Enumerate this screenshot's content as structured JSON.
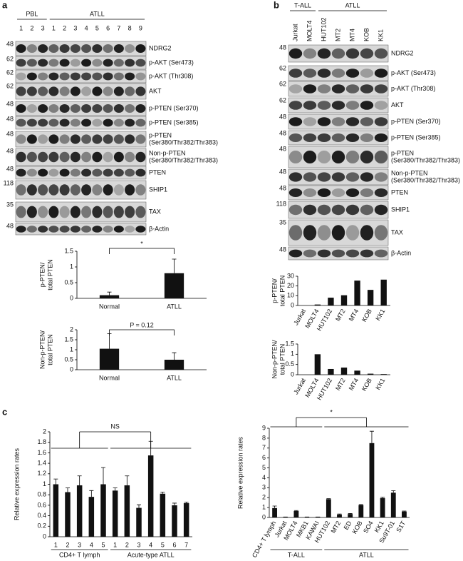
{
  "panels": [
    "a",
    "b",
    "c"
  ],
  "blot_a": {
    "groups": [
      "PBL",
      "ATLL"
    ],
    "lanes": [
      "1",
      "2",
      "3",
      "1",
      "2",
      "3",
      "4",
      "5",
      "6",
      "7",
      "8",
      "9"
    ],
    "rows": [
      {
        "mw": "48",
        "label": [
          "NDRG2"
        ]
      },
      {
        "mw": "62",
        "label": [
          "p-AKT (Ser473)"
        ]
      },
      {
        "mw": "62",
        "label": [
          "p-AKT (Thr308)"
        ]
      },
      {
        "mw": "62",
        "label": [
          "AKT"
        ]
      },
      {
        "mw": "48",
        "label": [
          "p-PTEN (Ser370)"
        ]
      },
      {
        "mw": "48",
        "label": [
          "p-PTEN (Ser385)"
        ]
      },
      {
        "mw": "48",
        "label": [
          "p-PTEN",
          "(Ser380/Thr382/Thr383)"
        ]
      },
      {
        "mw": "48",
        "label": [
          "Non-p-PTEN",
          "(Ser380/Thr382/Thr383)"
        ]
      },
      {
        "mw": "48",
        "label": [
          "PTEN"
        ]
      },
      {
        "mw": "118",
        "label": [
          "SHIP1"
        ]
      },
      {
        "mw": "35",
        "label": [
          "TAX"
        ]
      },
      {
        "mw": "48",
        "label": [
          "β-Actin"
        ]
      }
    ]
  },
  "blot_b": {
    "groups": [
      "T-ALL",
      "ATLL"
    ],
    "lanes": [
      "Jurkat",
      "MOLT4",
      "HUT102",
      "MT2",
      "MT4",
      "KOB",
      "KK1"
    ],
    "rows": [
      {
        "mw": "48",
        "label": [
          "NDRG2"
        ]
      },
      {
        "mw": "62",
        "label": [
          "p-AKT (Ser473)"
        ]
      },
      {
        "mw": "62",
        "label": [
          "p-AKT (Thr308)"
        ]
      },
      {
        "mw": "62",
        "label": [
          "AKT"
        ]
      },
      {
        "mw": "48",
        "label": [
          "p-PTEN (Ser370)"
        ]
      },
      {
        "mw": "48",
        "label": [
          "p-PTEN (Ser385)"
        ]
      },
      {
        "mw": "48",
        "label": [
          "p-PTEN",
          "(Ser380/Thr382/Thr383)"
        ]
      },
      {
        "mw": "48",
        "label": [
          "Non-p-PTEN",
          "(Ser380/Thr382/Thr383)"
        ]
      },
      {
        "mw": "48",
        "label": [
          "PTEN"
        ]
      },
      {
        "mw": "118",
        "label": [
          "SHIP1"
        ]
      },
      {
        "mw": "35",
        "label": [
          "TAX"
        ]
      },
      {
        "mw": "48",
        "label": [
          "β-Actin"
        ]
      }
    ]
  },
  "chart_data": [
    {
      "type": "bar",
      "ylabel": [
        "p-PTEN/",
        "total PTEN"
      ],
      "categories": [
        "Normal",
        "ATLL"
      ],
      "values": [
        0.1,
        0.8
      ],
      "errors": [
        0.1,
        0.45
      ],
      "color": "#111111",
      "ylim": [
        0,
        1.5
      ],
      "yticks": [
        0,
        0.5,
        1,
        1.5
      ],
      "annotation": "*"
    },
    {
      "type": "bar",
      "ylabel": [
        "Non-p-PTEN/",
        "total PTEN"
      ],
      "categories": [
        "Normal",
        "ATLL"
      ],
      "values": [
        1.05,
        0.5
      ],
      "errors": [
        0.75,
        0.35
      ],
      "color": "#111111",
      "ylim": [
        0,
        2
      ],
      "yticks": [
        0,
        0.5,
        1,
        1.5,
        2
      ],
      "annotation": "P = 0.12"
    },
    {
      "type": "bar",
      "ylabel": [
        "p-PTEN/",
        "total PTEN"
      ],
      "categories": [
        "Jurkat",
        "MOLT4",
        "HUT102",
        "MT2",
        "MT4",
        "KOB",
        "KK1"
      ],
      "values": [
        0,
        1,
        8,
        10.5,
        25.5,
        16,
        26.5
      ],
      "color": "#111111",
      "ylim": [
        0,
        30
      ],
      "yticks": [
        0,
        10,
        20,
        30
      ]
    },
    {
      "type": "bar",
      "ylabel": [
        "Non-p-PTEN/",
        "total PTEN"
      ],
      "categories": [
        "Jurkat",
        "MOLT4",
        "HUT102",
        "MT2",
        "MT4",
        "KOB",
        "KK1"
      ],
      "values": [
        0,
        1,
        0.28,
        0.35,
        0.2,
        0.05,
        0.03
      ],
      "color": "#111111",
      "ylim": [
        0,
        1.5
      ],
      "yticks": [
        0,
        0.5,
        1,
        1.5
      ]
    },
    {
      "type": "bar",
      "ylabel": [
        "Relative expression rates"
      ],
      "categories": [
        "1",
        "2",
        "3",
        "4",
        "5",
        "1",
        "2",
        "3",
        "4",
        "5",
        "6",
        "7"
      ],
      "values": [
        1.0,
        0.85,
        0.98,
        0.76,
        1.0,
        0.88,
        0.98,
        0.55,
        1.55,
        0.82,
        0.6,
        0.64
      ],
      "errors": [
        0.1,
        0.08,
        0.18,
        0.12,
        0.32,
        0.05,
        0.18,
        0.06,
        0.27,
        0.03,
        0.04,
        0.02
      ],
      "color": "#111111",
      "ylim": [
        0,
        2
      ],
      "yticks": [
        0,
        0.2,
        0.4,
        0.6,
        0.8,
        1,
        1.2,
        1.4,
        1.6,
        1.8,
        2
      ],
      "groups": [
        "CD4+ T lymph",
        "Acute-type ATLL"
      ],
      "annotation": "NS"
    },
    {
      "type": "bar",
      "ylabel": [
        "Relative expression rates"
      ],
      "categories": [
        "CD4+ T lymph",
        "Jurkat",
        "MOLT4",
        "MKB1",
        "KAWAI",
        "HUT102",
        "MT2",
        "ED",
        "KOB",
        "SO4",
        "KK1",
        "Su9T-01",
        "S1T"
      ],
      "values": [
        0.95,
        0.05,
        0.65,
        0.05,
        0.05,
        1.85,
        0.3,
        0.35,
        1.25,
        7.5,
        1.95,
        2.5,
        0.6
      ],
      "errors": [
        0.2,
        0,
        0.05,
        0,
        0,
        0.05,
        0.05,
        0.05,
        0.05,
        1.2,
        0.1,
        0.2,
        0.05
      ],
      "color": "#111111",
      "ylim": [
        0,
        9
      ],
      "yticks": [
        0,
        1,
        2,
        3,
        4,
        5,
        6,
        7,
        8,
        9
      ],
      "groups": [
        "T-ALL",
        "ATLL"
      ],
      "annotation": "*"
    }
  ]
}
